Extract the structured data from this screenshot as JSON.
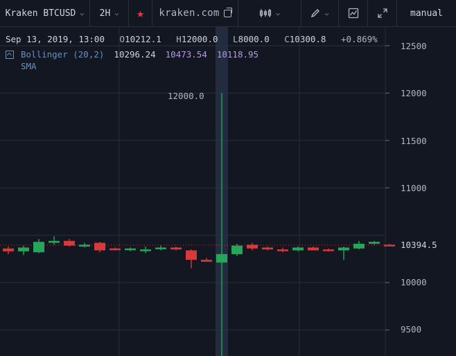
{
  "toolbar": {
    "symbol": "Kraken BTCUSD",
    "interval": "2H",
    "brand": "kraken.com",
    "mode": "manual",
    "icons": [
      "chevron-down-icon",
      "favorite-star-icon",
      "external-link-icon",
      "candles-icon",
      "pencil-icon",
      "chart-icon",
      "fullscreen-icon"
    ]
  },
  "legend": {
    "datetime": "Sep 13, 2019, 13:00",
    "o_label": "O",
    "o_value": "10212.1",
    "h_label": "H",
    "h_value": "12000.0",
    "l_label": "L",
    "l_value": "8000.0",
    "c_label": "C",
    "c_value": "10300.8",
    "change": "+0.869%"
  },
  "indicator": {
    "name": "Bollinger (20,2)",
    "sub": "SMA",
    "middle": "10296.24",
    "upper": "10473.54",
    "lower": "10118.95"
  },
  "price_scale": {
    "labels": [
      "12500",
      "12000",
      "11500",
      "11000",
      "10000",
      "9500"
    ],
    "last_price": "10394.5"
  },
  "crosshair_value": "12000.0",
  "colors": {
    "up": "#26a65b",
    "down": "#d63a3a",
    "bg": "#131722",
    "grid": "#2a2e39",
    "star": "#f23645"
  },
  "chart_data": {
    "type": "candlestick",
    "ylim": [
      9300,
      12650
    ],
    "candles": [
      {
        "o": 10360,
        "h": 10380,
        "l": 10300,
        "c": 10330
      },
      {
        "o": 10330,
        "h": 10390,
        "l": 10290,
        "c": 10370
      },
      {
        "o": 10320,
        "h": 10460,
        "l": 10310,
        "c": 10430
      },
      {
        "o": 10420,
        "h": 10490,
        "l": 10400,
        "c": 10440
      },
      {
        "o": 10440,
        "h": 10460,
        "l": 10380,
        "c": 10390
      },
      {
        "o": 10380,
        "h": 10420,
        "l": 10370,
        "c": 10400
      },
      {
        "o": 10420,
        "h": 10430,
        "l": 10320,
        "c": 10340
      },
      {
        "o": 10360,
        "h": 10370,
        "l": 10340,
        "c": 10350
      },
      {
        "o": 10350,
        "h": 10370,
        "l": 10330,
        "c": 10360
      },
      {
        "o": 10340,
        "h": 10380,
        "l": 10310,
        "c": 10350
      },
      {
        "o": 10360,
        "h": 10390,
        "l": 10340,
        "c": 10370
      },
      {
        "o": 10370,
        "h": 10380,
        "l": 10340,
        "c": 10350
      },
      {
        "o": 10340,
        "h": 10350,
        "l": 10150,
        "c": 10240
      },
      {
        "o": 10240,
        "h": 10260,
        "l": 10220,
        "c": 10220
      },
      {
        "o": 10212.1,
        "h": 12000,
        "l": 8000,
        "c": 10300.8
      },
      {
        "o": 10300,
        "h": 10410,
        "l": 10280,
        "c": 10390
      },
      {
        "o": 10400,
        "h": 10420,
        "l": 10340,
        "c": 10360
      },
      {
        "o": 10370,
        "h": 10380,
        "l": 10340,
        "c": 10350
      },
      {
        "o": 10350,
        "h": 10370,
        "l": 10320,
        "c": 10340
      },
      {
        "o": 10340,
        "h": 10380,
        "l": 10330,
        "c": 10370
      },
      {
        "o": 10370,
        "h": 10380,
        "l": 10340,
        "c": 10340
      },
      {
        "o": 10350,
        "h": 10360,
        "l": 10330,
        "c": 10340
      },
      {
        "o": 10340,
        "h": 10380,
        "l": 10240,
        "c": 10370
      },
      {
        "o": 10360,
        "h": 10440,
        "l": 10350,
        "c": 10410
      },
      {
        "o": 10410,
        "h": 10440,
        "l": 10400,
        "c": 10430
      },
      {
        "o": 10400,
        "h": 10410,
        "l": 10390,
        "c": 10394.5
      }
    ]
  }
}
